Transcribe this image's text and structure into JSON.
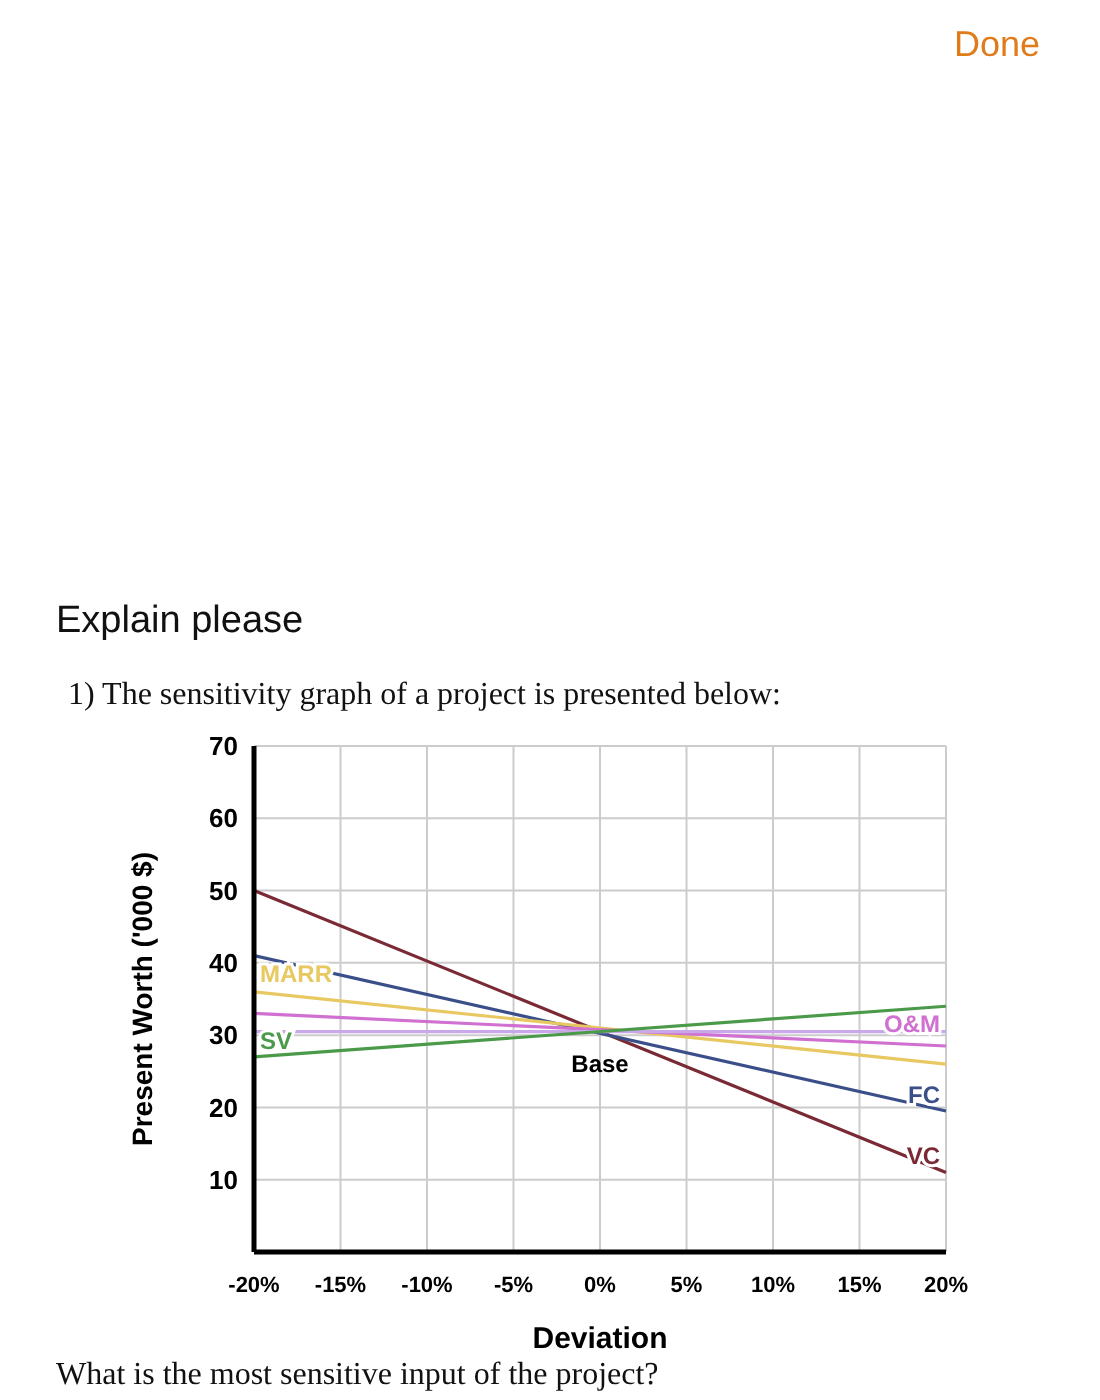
{
  "chart_data": {
    "type": "line",
    "xlabel": "Deviation",
    "ylabel": "Present Worth ('000 $)",
    "x": [
      -20,
      20
    ],
    "series": [
      {
        "name": "VC",
        "color": "#7a2a35",
        "values": [
          50,
          11
        ]
      },
      {
        "name": "FC",
        "color": "#3a4f8a",
        "values": [
          41,
          19.5
        ]
      },
      {
        "name": "MARR",
        "color": "#e8c860",
        "values": [
          36,
          26
        ]
      },
      {
        "name": "O&M",
        "color": "#d070d0",
        "values": [
          33,
          28.5
        ]
      },
      {
        "color": "#c8a8e8",
        "values": [
          30.5,
          30.5
        ]
      },
      {
        "name": "SV",
        "color": "#4a9a4a",
        "values": [
          27,
          34
        ]
      }
    ],
    "xlim": [
      -20,
      20
    ],
    "xticks": [
      {
        "value": -20,
        "label": "-20%"
      },
      {
        "value": -15,
        "label": "-15%"
      },
      {
        "value": -10,
        "label": "-10%"
      },
      {
        "value": -5,
        "label": "-5%"
      },
      {
        "value": 0,
        "label": "0%"
      },
      {
        "value": 5,
        "label": "5%"
      },
      {
        "value": 10,
        "label": "10%"
      },
      {
        "value": 15,
        "label": "15%"
      },
      {
        "value": 20,
        "label": "20%"
      }
    ],
    "ylim": [
      0,
      70
    ],
    "yticks": [
      10,
      20,
      30,
      40,
      50,
      60,
      70
    ],
    "grid": true,
    "marker": "none",
    "line_style": "solid",
    "annotations": [
      "Done",
      "Explain please",
      "1) The sensitivity graph of a project is presented below:",
      {
        "text": "Base",
        "x": 0,
        "y": 31
      },
      "What is the most sensitive input of the project?"
    ]
  }
}
